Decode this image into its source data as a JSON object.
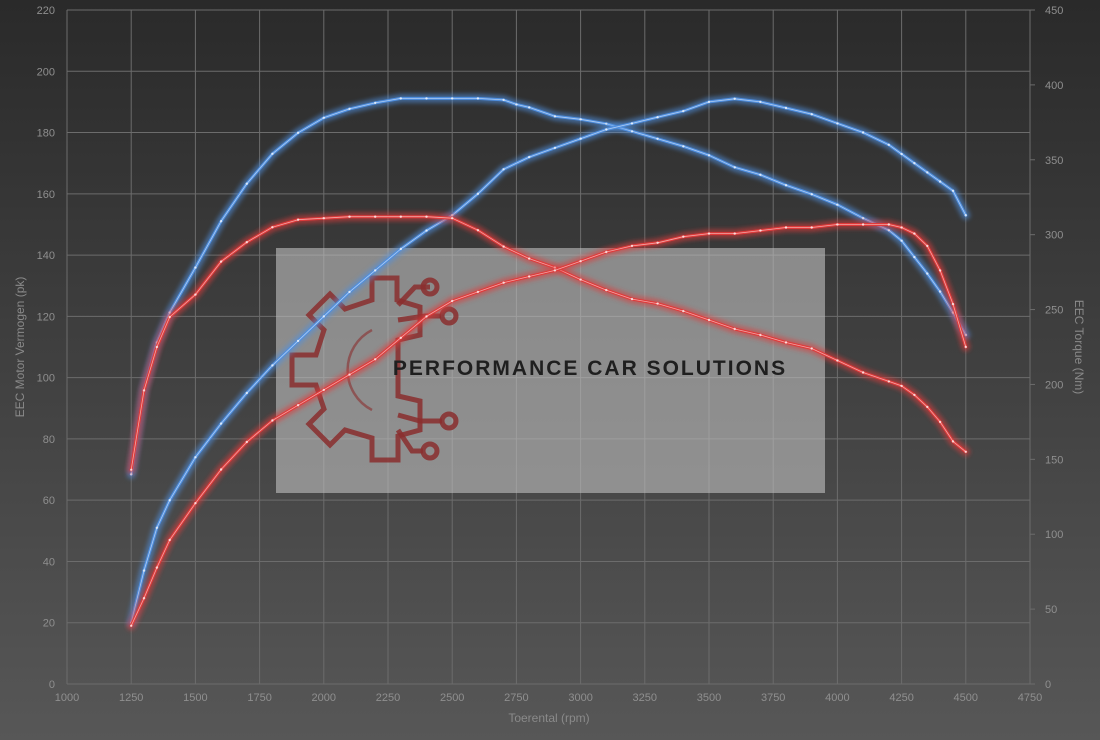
{
  "watermark": {
    "brand_text": "PERFORMANCE CAR SOLUTIONS"
  },
  "chart_data": {
    "type": "line",
    "xlabel": "Toerental (rpm)",
    "ylabel_left": "EEC Motor Vermogen (pk)",
    "ylabel_right": "EEC Torque (Nm)",
    "xlim": [
      1000,
      4750
    ],
    "ylim_left": [
      0,
      220
    ],
    "ylim_right": [
      0,
      450
    ],
    "x_ticks": [
      1000,
      1250,
      1500,
      1750,
      2000,
      2250,
      2500,
      2750,
      3000,
      3250,
      3500,
      3750,
      4000,
      4250,
      4500,
      4750
    ],
    "y_ticks_left": [
      0,
      20,
      40,
      60,
      80,
      100,
      120,
      140,
      160,
      180,
      200,
      220
    ],
    "y_ticks_right": [
      0,
      50,
      100,
      150,
      200,
      250,
      300,
      350,
      400,
      450
    ],
    "grid": true,
    "colors": {
      "blue": "#4f8fe0",
      "red": "#e03a3a",
      "background_top": "#2a2a2a",
      "background_bottom": "#575757"
    },
    "series": [
      {
        "axis": "right",
        "color": "blue",
        "x": [
          1250,
          1300,
          1350,
          1400,
          1500,
          1600,
          1700,
          1800,
          1900,
          2000,
          2100,
          2200,
          2300,
          2400,
          2500,
          2600,
          2700,
          2750,
          2800,
          2900,
          3000,
          3100,
          3200,
          3300,
          3400,
          3500,
          3600,
          3700,
          3800,
          3900,
          4000,
          4100,
          4200,
          4250,
          4300,
          4350,
          4400,
          4450,
          4500
        ],
        "y": [
          140,
          197,
          228,
          248,
          278,
          309,
          334,
          354,
          368,
          378,
          384,
          388,
          391,
          391,
          391,
          391,
          390,
          387,
          385,
          379,
          377,
          374,
          369,
          364,
          359,
          353,
          345,
          340,
          333,
          327,
          320,
          311,
          303,
          296,
          285,
          274,
          262,
          248,
          233
        ]
      },
      {
        "axis": "left",
        "color": "blue",
        "x": [
          1250,
          1300,
          1350,
          1400,
          1500,
          1600,
          1700,
          1800,
          1900,
          2000,
          2100,
          2200,
          2300,
          2400,
          2500,
          2600,
          2700,
          2800,
          2900,
          3000,
          3100,
          3200,
          3300,
          3400,
          3500,
          3600,
          3700,
          3800,
          3900,
          4000,
          4100,
          4200,
          4250,
          4300,
          4350,
          4400,
          4450,
          4500
        ],
        "y": [
          20,
          37,
          51,
          60,
          74,
          85,
          95,
          104,
          112,
          120,
          128,
          135,
          142,
          148,
          153,
          160,
          168,
          172,
          175,
          178,
          181,
          183,
          185,
          187,
          190,
          191,
          190,
          188,
          186,
          183,
          180,
          176,
          173,
          170,
          167,
          164,
          161,
          153
        ]
      },
      {
        "axis": "right",
        "color": "red",
        "x": [
          1250,
          1300,
          1350,
          1400,
          1500,
          1600,
          1700,
          1800,
          1900,
          2000,
          2100,
          2200,
          2300,
          2400,
          2500,
          2600,
          2700,
          2800,
          2900,
          3000,
          3100,
          3200,
          3300,
          3400,
          3500,
          3600,
          3700,
          3800,
          3900,
          4000,
          4100,
          4200,
          4250,
          4300,
          4350,
          4400,
          4450,
          4500
        ],
        "y": [
          143,
          196,
          225,
          245,
          260,
          282,
          295,
          305,
          310,
          311,
          312,
          312,
          312,
          312,
          311,
          303,
          292,
          284,
          278,
          270,
          263,
          257,
          254,
          249,
          243,
          237,
          233,
          228,
          224,
          216,
          208,
          202,
          199,
          193,
          185,
          175,
          162,
          155
        ]
      },
      {
        "axis": "left",
        "color": "red",
        "x": [
          1250,
          1300,
          1350,
          1400,
          1500,
          1600,
          1700,
          1800,
          1900,
          2000,
          2100,
          2200,
          2300,
          2400,
          2500,
          2600,
          2700,
          2800,
          2900,
          3000,
          3100,
          3200,
          3300,
          3400,
          3500,
          3600,
          3700,
          3800,
          3900,
          4000,
          4100,
          4200,
          4250,
          4300,
          4350,
          4400,
          4450,
          4500
        ],
        "y": [
          19,
          28,
          38,
          47,
          59,
          70,
          79,
          86,
          91,
          96,
          101,
          106,
          113,
          120,
          125,
          128,
          131,
          133,
          135,
          138,
          141,
          143,
          144,
          146,
          147,
          147,
          148,
          149,
          149,
          150,
          150,
          150,
          149,
          147,
          143,
          135,
          124,
          110
        ]
      }
    ]
  }
}
